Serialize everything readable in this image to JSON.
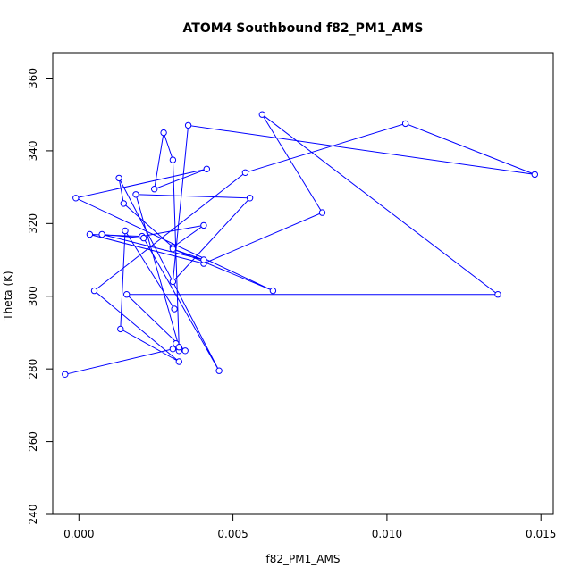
{
  "chart_data": {
    "type": "line",
    "title": "ATOM4 Southbound f82_PM1_AMS",
    "xlabel": "f82_PM1_AMS",
    "ylabel": "Theta (K)",
    "xlim": [
      -0.00085,
      0.0154
    ],
    "ylim": [
      240,
      367
    ],
    "x_ticks": [
      "0.000",
      "0.005",
      "0.010",
      "0.015"
    ],
    "y_ticks": [
      "240",
      "260",
      "280",
      "300",
      "320",
      "340",
      "360"
    ],
    "grid": false,
    "legend": "none",
    "series": [
      {
        "color": "#0000ff",
        "marker": "open-circle",
        "x": [
          -0.00045,
          0.00305,
          0.00325,
          0.00315,
          0.00345,
          0.00155,
          0.0136,
          0.00595,
          0.0079,
          0.00405,
          0.00035,
          0.00205,
          0.00405,
          0.00305,
          0.00145,
          0.0013,
          0.00455,
          0.0021,
          0.00075,
          0.00405,
          0.00305,
          0.0063,
          -0.0001,
          0.00415,
          0.00245,
          0.00275,
          0.00305,
          0.00325,
          0.00185,
          0.00555,
          0.00305,
          0.00355,
          0.0148,
          0.0106,
          0.0054,
          0.0005,
          0.00325,
          0.00135,
          0.0015,
          0.0031
        ],
        "y": [
          278.5,
          285.5,
          285.0,
          287.0,
          285.0,
          300.5,
          300.5,
          350.0,
          323.0,
          309.0,
          317.0,
          316.5,
          319.5,
          313.5,
          325.5,
          332.5,
          279.5,
          316.0,
          317.0,
          310.0,
          313.0,
          301.5,
          327.0,
          335.0,
          329.5,
          345.0,
          337.5,
          286.0,
          328.0,
          327.0,
          304.0,
          347.0,
          333.5,
          347.5,
          334.0,
          301.5,
          282.0,
          291.0,
          318.0,
          296.5
        ]
      }
    ]
  }
}
